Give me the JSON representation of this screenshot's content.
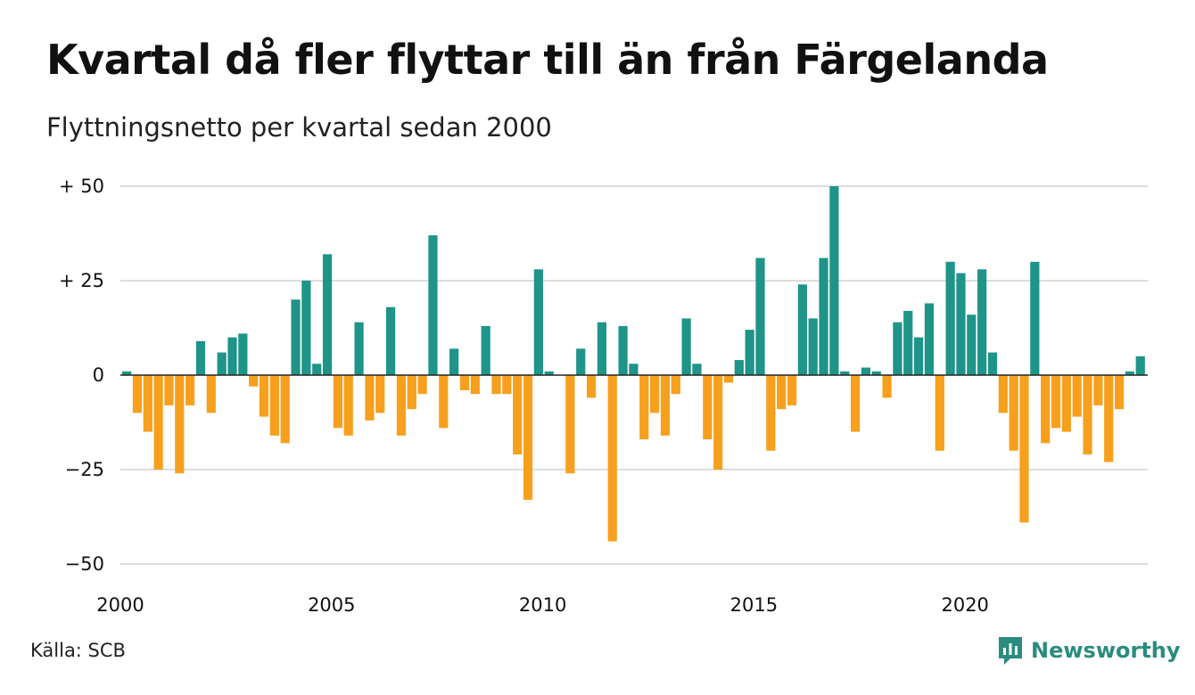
{
  "chart_data": {
    "type": "bar",
    "title": "Kvartal då fler flyttar till än från Färgelanda",
    "subtitle": "Flyttningsnetto per kvartal sedan 2000",
    "xlabel": "",
    "ylabel": "",
    "x_start_year": 2000,
    "quarters_per_year": 4,
    "ylim": [
      -52,
      50
    ],
    "y_ticks": [
      {
        "value": 50,
        "label": "+ 50"
      },
      {
        "value": 25,
        "label": "+ 25"
      },
      {
        "value": 0,
        "label": "0"
      },
      {
        "value": -25,
        "label": "−25"
      },
      {
        "value": -50,
        "label": "−50"
      }
    ],
    "x_ticks": [
      {
        "value": 2000,
        "label": "2000"
      },
      {
        "value": 2005,
        "label": "2005"
      },
      {
        "value": 2010,
        "label": "2010"
      },
      {
        "value": 2015,
        "label": "2015"
      },
      {
        "value": 2020,
        "label": "2020"
      }
    ],
    "grid": true,
    "colors": {
      "positive": "#1f9488",
      "negative": "#f6a01e",
      "grid": "#dddddd",
      "baseline": "#222222"
    },
    "values": [
      1,
      -10,
      -15,
      -25,
      -8,
      -26,
      -8,
      9,
      -10,
      6,
      10,
      11,
      -3,
      -11,
      -16,
      -18,
      20,
      25,
      3,
      32,
      -14,
      -16,
      14,
      -12,
      -10,
      18,
      -16,
      -9,
      -5,
      37,
      -14,
      7,
      -4,
      -5,
      13,
      -5,
      -5,
      -21,
      -33,
      28,
      1,
      0,
      -26,
      7,
      -6,
      14,
      -44,
      13,
      3,
      -17,
      -10,
      -16,
      -5,
      15,
      3,
      -17,
      -25,
      -2,
      4,
      12,
      31,
      -20,
      -9,
      -8,
      24,
      15,
      31,
      50,
      1,
      -15,
      2,
      1,
      -6,
      14,
      17,
      10,
      19,
      -20,
      30,
      27,
      16,
      28,
      6,
      -10,
      -20,
      -39,
      30,
      -18,
      -14,
      -15,
      -11,
      -21,
      -8,
      -23,
      -9,
      1,
      5
    ]
  },
  "source": "Källa: SCB",
  "brand": {
    "name": "Newsworthy",
    "icon": "newsworthy-logo-icon"
  }
}
